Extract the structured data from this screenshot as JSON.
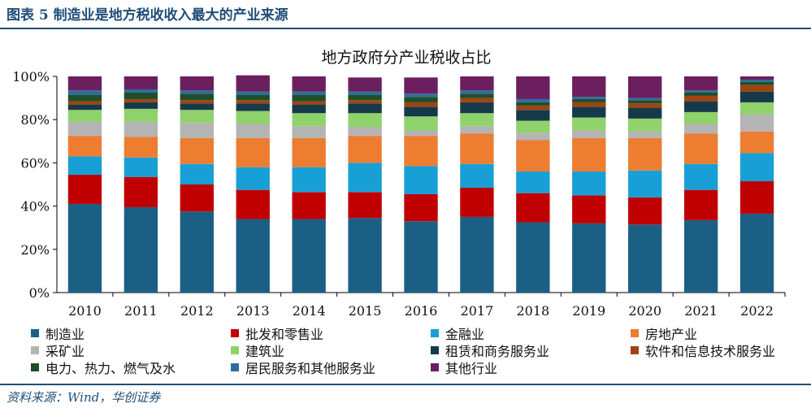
{
  "figure": {
    "caption": "图表 5   制造业是地方税收收入最大的产业来源",
    "source": "资料来源：Wind，华创证券"
  },
  "chart_data": {
    "type": "bar",
    "stacked": true,
    "title": "地方政府分产业税收占比",
    "xlabel": "",
    "ylabel": "",
    "ylim": [
      0,
      100
    ],
    "y_ticks": [
      "0%",
      "20%",
      "40%",
      "60%",
      "80%",
      "100%"
    ],
    "categories": [
      "2010",
      "2011",
      "2012",
      "2013",
      "2014",
      "2015",
      "2016",
      "2017",
      "2018",
      "2019",
      "2020",
      "2021",
      "2022"
    ],
    "legend_position": "bottom",
    "series": [
      {
        "name": "制造业",
        "color": "#1c5f85",
        "values": [
          41,
          39.5,
          37.5,
          34,
          34,
          34.5,
          33,
          35,
          32.5,
          32,
          31.5,
          33.5,
          36.5
        ]
      },
      {
        "name": "批发和零售业",
        "color": "#c00000",
        "values": [
          13.5,
          14,
          12.5,
          13.5,
          12.5,
          12,
          12.5,
          13.5,
          13.5,
          13,
          12.5,
          14,
          15
        ]
      },
      {
        "name": "金融业",
        "color": "#18a0d6",
        "values": [
          8.5,
          9,
          9.5,
          10.5,
          11.5,
          13.5,
          13,
          11,
          10,
          11,
          12.5,
          12,
          13
        ]
      },
      {
        "name": "房地产业",
        "color": "#ed7d31",
        "values": [
          9.5,
          9.5,
          12,
          13.5,
          13.5,
          12.5,
          14,
          14,
          14.5,
          15.5,
          15,
          14,
          10
        ]
      },
      {
        "name": "采矿业",
        "color": "#b4b4b4",
        "values": [
          6.5,
          7,
          7,
          6.5,
          5.5,
          4,
          2.5,
          3.5,
          3.5,
          3.5,
          3,
          4.5,
          8
        ]
      },
      {
        "name": "建筑业",
        "color": "#8fd16b",
        "values": [
          5.5,
          6,
          6,
          6,
          6,
          6.5,
          6.5,
          6,
          5.5,
          6,
          6,
          5.5,
          5.5
        ]
      },
      {
        "name": "租赁和商务服务业",
        "color": "#163a4a",
        "values": [
          2.5,
          3,
          3,
          3.5,
          4,
          4.5,
          4.5,
          5,
          5,
          5,
          5,
          5,
          5
        ]
      },
      {
        "name": "软件和信息技术服务业",
        "color": "#a0450f",
        "values": [
          1.5,
          1.5,
          1.5,
          1.5,
          1.5,
          1.5,
          2,
          2,
          2,
          2,
          2,
          2.5,
          3
        ]
      },
      {
        "name": "电力、热力、燃气及水",
        "color": "#1f4e2a",
        "values": [
          3,
          3,
          3,
          2.5,
          3,
          2.5,
          2.5,
          2,
          1.5,
          1.5,
          1.5,
          1.5,
          1.5
        ]
      },
      {
        "name": "居民服务和其他服务业",
        "color": "#2e6e9e",
        "values": [
          2,
          1.5,
          1.5,
          1.5,
          1.5,
          1.5,
          1.5,
          1.5,
          1.5,
          1,
          1,
          1,
          1
        ]
      },
      {
        "name": "其他行业",
        "color": "#6b1f5e",
        "values": [
          6.5,
          6,
          6.5,
          7.5,
          7,
          6.5,
          7.5,
          6.5,
          10.5,
          9.5,
          10,
          6.5,
          1.5
        ]
      }
    ]
  }
}
